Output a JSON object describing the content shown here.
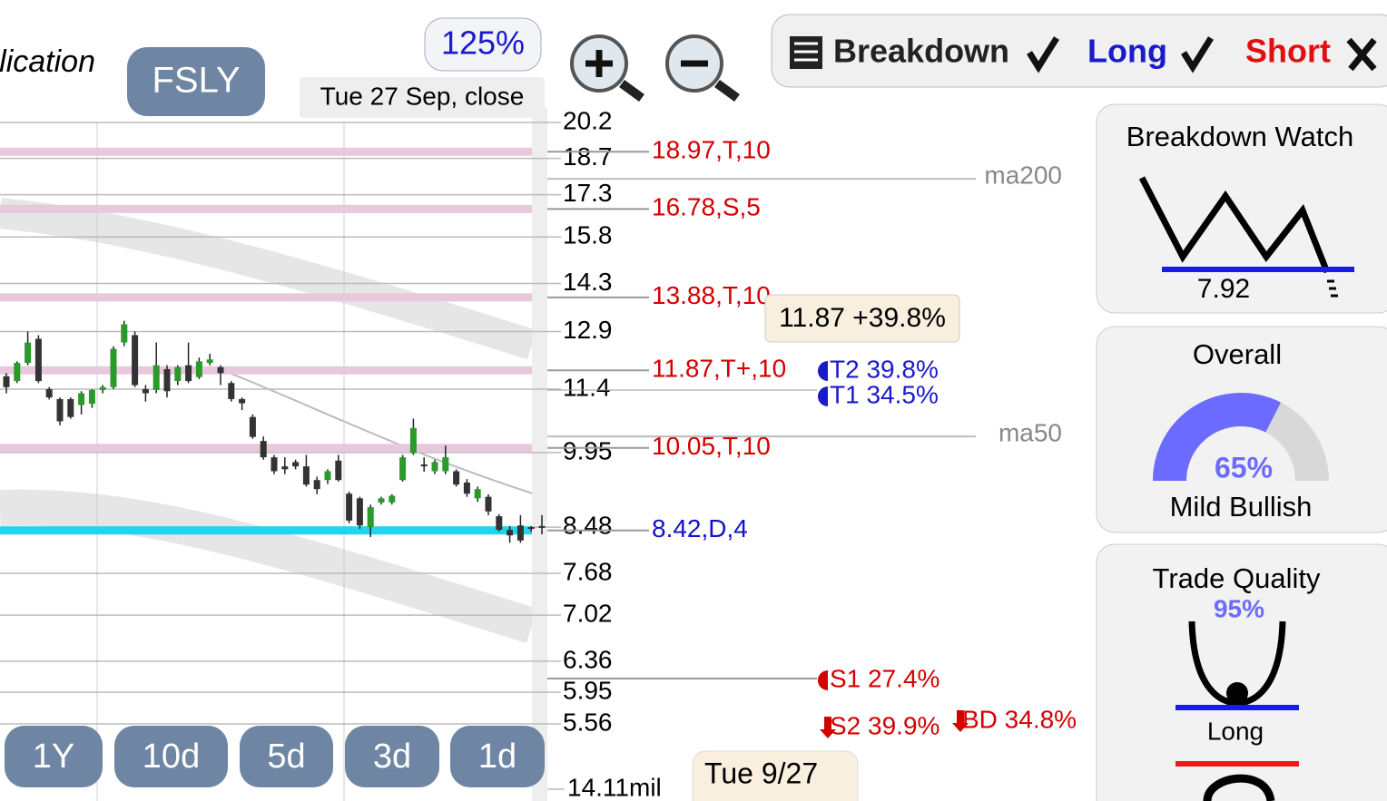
{
  "header": {
    "app_title": "lication",
    "symbol": "FSLY",
    "zoom": "125%",
    "date": "Tue 27 Sep, close"
  },
  "toolbar": {
    "breakdown": "Breakdown",
    "long": "Long",
    "short": "Short"
  },
  "chart_data": {
    "type": "candlestick",
    "scale": "log",
    "ylim": [
      5.56,
      20.2
    ],
    "yticks": [
      20.2,
      18.7,
      17.3,
      15.8,
      14.3,
      12.9,
      11.4,
      9.95,
      8.48,
      7.68,
      7.02,
      6.36,
      5.95,
      5.56
    ],
    "grid": true,
    "up_color": "#2a9a2a",
    "down_color": "#333333",
    "candles": [
      {
        "o": 11.72,
        "h": 11.8,
        "l": 11.3,
        "c": 11.45
      },
      {
        "o": 11.6,
        "h": 12.1,
        "l": 11.55,
        "c": 12.06
      },
      {
        "o": 12.06,
        "h": 12.9,
        "l": 12.0,
        "c": 12.6
      },
      {
        "o": 12.7,
        "h": 12.8,
        "l": 11.55,
        "c": 11.6
      },
      {
        "o": 11.4,
        "h": 11.45,
        "l": 11.15,
        "c": 11.2
      },
      {
        "o": 11.16,
        "h": 11.2,
        "l": 10.55,
        "c": 10.64
      },
      {
        "o": 11.16,
        "h": 11.2,
        "l": 10.7,
        "c": 10.74
      },
      {
        "o": 11.02,
        "h": 11.35,
        "l": 10.8,
        "c": 11.3
      },
      {
        "o": 11.05,
        "h": 11.4,
        "l": 10.95,
        "c": 11.38
      },
      {
        "o": 11.38,
        "h": 11.5,
        "l": 11.3,
        "c": 11.45
      },
      {
        "o": 11.45,
        "h": 12.5,
        "l": 11.4,
        "c": 12.43
      },
      {
        "o": 12.6,
        "h": 13.2,
        "l": 12.5,
        "c": 13.1
      },
      {
        "o": 12.8,
        "h": 12.9,
        "l": 11.45,
        "c": 11.5
      },
      {
        "o": 11.4,
        "h": 11.5,
        "l": 11.1,
        "c": 11.3
      },
      {
        "o": 11.38,
        "h": 12.6,
        "l": 11.3,
        "c": 12.0
      },
      {
        "o": 11.9,
        "h": 12.0,
        "l": 11.2,
        "c": 11.35
      },
      {
        "o": 11.6,
        "h": 12.0,
        "l": 11.5,
        "c": 11.95
      },
      {
        "o": 12.0,
        "h": 12.6,
        "l": 11.55,
        "c": 11.6
      },
      {
        "o": 11.7,
        "h": 12.2,
        "l": 11.65,
        "c": 12.1
      },
      {
        "o": 12.06,
        "h": 12.3,
        "l": 12.0,
        "c": 12.15
      },
      {
        "o": 11.95,
        "h": 12.0,
        "l": 11.5,
        "c": 11.8
      },
      {
        "o": 11.55,
        "h": 11.6,
        "l": 11.1,
        "c": 11.16
      },
      {
        "o": 11.16,
        "h": 11.2,
        "l": 10.9,
        "c": 11.06
      },
      {
        "o": 10.74,
        "h": 10.8,
        "l": 10.25,
        "c": 10.29
      },
      {
        "o": 10.2,
        "h": 10.3,
        "l": 9.8,
        "c": 9.85
      },
      {
        "o": 9.85,
        "h": 9.9,
        "l": 9.5,
        "c": 9.56
      },
      {
        "o": 9.66,
        "h": 9.85,
        "l": 9.5,
        "c": 9.6
      },
      {
        "o": 9.75,
        "h": 9.8,
        "l": 9.6,
        "c": 9.66
      },
      {
        "o": 9.66,
        "h": 9.9,
        "l": 9.25,
        "c": 9.29
      },
      {
        "o": 9.38,
        "h": 9.45,
        "l": 9.1,
        "c": 9.2
      },
      {
        "o": 9.38,
        "h": 9.6,
        "l": 9.3,
        "c": 9.56
      },
      {
        "o": 9.78,
        "h": 9.9,
        "l": 9.35,
        "c": 9.38
      },
      {
        "o": 9.11,
        "h": 9.15,
        "l": 8.55,
        "c": 8.6
      },
      {
        "o": 9.02,
        "h": 9.05,
        "l": 8.45,
        "c": 8.51
      },
      {
        "o": 8.48,
        "h": 8.9,
        "l": 8.3,
        "c": 8.85
      },
      {
        "o": 8.94,
        "h": 9.05,
        "l": 8.9,
        "c": 9.02
      },
      {
        "o": 8.94,
        "h": 9.1,
        "l": 8.9,
        "c": 9.07
      },
      {
        "o": 9.38,
        "h": 9.9,
        "l": 9.35,
        "c": 9.85
      },
      {
        "o": 9.94,
        "h": 10.7,
        "l": 9.9,
        "c": 10.49
      },
      {
        "o": 9.7,
        "h": 9.85,
        "l": 9.55,
        "c": 9.66
      },
      {
        "o": 9.56,
        "h": 9.8,
        "l": 9.5,
        "c": 9.75
      },
      {
        "o": 9.56,
        "h": 10.1,
        "l": 9.5,
        "c": 9.85
      },
      {
        "o": 9.56,
        "h": 9.6,
        "l": 9.25,
        "c": 9.29
      },
      {
        "o": 9.33,
        "h": 9.4,
        "l": 9.05,
        "c": 9.11
      },
      {
        "o": 9.02,
        "h": 9.25,
        "l": 8.95,
        "c": 9.2
      },
      {
        "o": 9.05,
        "h": 9.1,
        "l": 8.7,
        "c": 8.77
      },
      {
        "o": 8.68,
        "h": 8.72,
        "l": 8.4,
        "c": 8.43
      },
      {
        "o": 8.43,
        "h": 8.5,
        "l": 8.2,
        "c": 8.33
      },
      {
        "o": 8.51,
        "h": 8.7,
        "l": 8.2,
        "c": 8.24
      },
      {
        "o": 8.48,
        "h": 8.5,
        "l": 8.4,
        "c": 8.45
      },
      {
        "o": 8.5,
        "h": 8.7,
        "l": 8.35,
        "c": 8.47
      }
    ],
    "levels": [
      {
        "label": "18.97,T,10",
        "value": 18.97,
        "color": "#d40000",
        "band": "#e8c8dc"
      },
      {
        "label": "16.78,S,5",
        "value": 16.78,
        "color": "#d40000",
        "band": "#e8c8dc"
      },
      {
        "label": "13.88,T,10",
        "value": 13.88,
        "color": "#d40000",
        "band": "#e8c8dc"
      },
      {
        "label": "11.87,T+,10",
        "value": 11.87,
        "color": "#d40000",
        "band": "#e8c8dc"
      },
      {
        "label": "10.05,T,10",
        "value": 10.05,
        "color": "#d40000",
        "band": "#e8c8dc"
      },
      {
        "label": "8.42,D,4",
        "value": 8.42,
        "color": "#1010cc",
        "band": "#22d4f0"
      }
    ],
    "moving_averages": [
      {
        "name": "ma200",
        "value": 17.9
      },
      {
        "name": "ma50",
        "value": 10.3
      }
    ],
    "targets": [
      "T2 39.8%",
      "T1 34.5%",
      "S1 27.4%",
      "S2 39.9%",
      "BD 34.8%"
    ],
    "tooltip": "11.87 +39.8%",
    "cursor_date": "Tue 9/27",
    "volume_label": "14.11mil"
  },
  "ranges": [
    "1Y",
    "10d",
    "5d",
    "3d",
    "1d"
  ],
  "panels": {
    "breakdown_watch": {
      "title": "Breakdown Watch",
      "value": "7.92"
    },
    "overall": {
      "title": "Overall",
      "score": {
        "value": 65,
        "label": "65%"
      },
      "verdict": "Mild Bullish"
    },
    "trade_quality": {
      "title": "Trade Quality",
      "score": {
        "value": 95,
        "label": "95%"
      },
      "verdict": "Long"
    }
  }
}
